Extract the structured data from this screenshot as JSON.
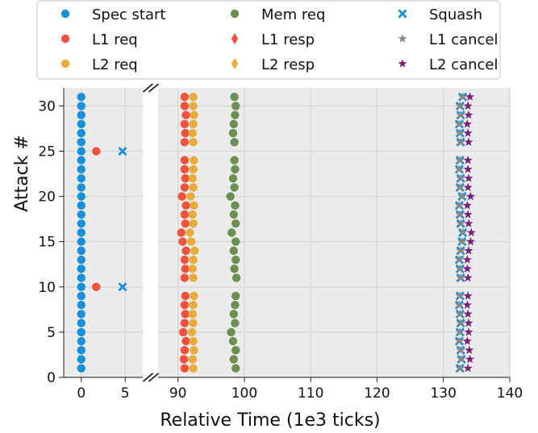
{
  "chart_data": {
    "type": "scatter",
    "xlabel": "Relative Time (1e3 ticks)",
    "ylabel": "Attack #",
    "broken_x_axis": true,
    "x_segments": [
      {
        "xlim": [
          -2,
          7
        ],
        "ticks": [
          0,
          5
        ]
      },
      {
        "xlim": [
          87,
          140
        ],
        "ticks": [
          90,
          100,
          110,
          120,
          130,
          140
        ]
      }
    ],
    "ylim": [
      0,
      32
    ],
    "yticks": [
      0,
      5,
      10,
      15,
      20,
      25,
      30
    ],
    "grid": true,
    "legend_position": "top",
    "legend_columns": 3,
    "series": [
      {
        "name": "Spec start",
        "marker": "circle",
        "color": "#1a90d6",
        "points": [
          [
            0,
            1
          ],
          [
            0,
            2
          ],
          [
            0,
            3
          ],
          [
            0,
            4
          ],
          [
            0,
            5
          ],
          [
            0,
            6
          ],
          [
            0,
            7
          ],
          [
            0,
            8
          ],
          [
            0,
            9
          ],
          [
            0,
            10
          ],
          [
            0,
            11
          ],
          [
            0,
            12
          ],
          [
            0,
            13
          ],
          [
            0,
            14
          ],
          [
            0,
            15
          ],
          [
            0,
            16
          ],
          [
            0,
            17
          ],
          [
            0,
            18
          ],
          [
            0,
            19
          ],
          [
            0,
            20
          ],
          [
            0,
            21
          ],
          [
            0,
            22
          ],
          [
            0,
            23
          ],
          [
            0,
            24
          ],
          [
            0,
            25
          ],
          [
            0,
            26
          ],
          [
            0,
            27
          ],
          [
            0,
            28
          ],
          [
            0,
            29
          ],
          [
            0,
            30
          ],
          [
            0,
            31
          ]
        ]
      },
      {
        "name": "L1 req",
        "marker": "circle",
        "color": "#f0533d",
        "points": [
          [
            1.7,
            10
          ],
          [
            1.7,
            25
          ],
          [
            91.0,
            1
          ],
          [
            90.9,
            2
          ],
          [
            91.0,
            3
          ],
          [
            91.2,
            4
          ],
          [
            90.8,
            5
          ],
          [
            91.0,
            6
          ],
          [
            91.1,
            7
          ],
          [
            91.0,
            8
          ],
          [
            91.1,
            9
          ],
          [
            91.0,
            11
          ],
          [
            91.1,
            12
          ],
          [
            91.0,
            13
          ],
          [
            91.2,
            14
          ],
          [
            90.7,
            15
          ],
          [
            90.5,
            16
          ],
          [
            91.1,
            17
          ],
          [
            91.0,
            18
          ],
          [
            91.2,
            19
          ],
          [
            90.6,
            20
          ],
          [
            91.0,
            21
          ],
          [
            91.1,
            22
          ],
          [
            91.0,
            23
          ],
          [
            91.0,
            24
          ],
          [
            91.0,
            26
          ],
          [
            91.1,
            27
          ],
          [
            91.0,
            28
          ],
          [
            91.2,
            29
          ],
          [
            91.0,
            30
          ],
          [
            91.0,
            31
          ]
        ]
      },
      {
        "name": "L2 req",
        "marker": "circle",
        "color": "#e6ac3c",
        "points": [
          [
            92.3,
            1
          ],
          [
            92.2,
            2
          ],
          [
            92.4,
            3
          ],
          [
            92.3,
            4
          ],
          [
            92.1,
            5
          ],
          [
            92.3,
            6
          ],
          [
            92.2,
            7
          ],
          [
            92.3,
            8
          ],
          [
            92.4,
            9
          ],
          [
            92.3,
            11
          ],
          [
            92.2,
            12
          ],
          [
            92.3,
            13
          ],
          [
            92.5,
            14
          ],
          [
            92.0,
            15
          ],
          [
            91.8,
            16
          ],
          [
            92.3,
            17
          ],
          [
            92.2,
            18
          ],
          [
            92.4,
            19
          ],
          [
            91.9,
            20
          ],
          [
            92.3,
            21
          ],
          [
            92.2,
            22
          ],
          [
            92.3,
            23
          ],
          [
            92.4,
            24
          ],
          [
            92.3,
            26
          ],
          [
            92.2,
            27
          ],
          [
            92.3,
            28
          ],
          [
            92.4,
            29
          ],
          [
            92.3,
            30
          ],
          [
            92.3,
            31
          ]
        ]
      },
      {
        "name": "Mem req",
        "marker": "circle",
        "color": "#6b9052",
        "points": [
          [
            98.7,
            1
          ],
          [
            98.4,
            2
          ],
          [
            98.7,
            3
          ],
          [
            98.3,
            4
          ],
          [
            98.0,
            5
          ],
          [
            98.6,
            6
          ],
          [
            98.4,
            7
          ],
          [
            98.6,
            8
          ],
          [
            98.7,
            9
          ],
          [
            98.8,
            11
          ],
          [
            98.5,
            12
          ],
          [
            98.7,
            13
          ],
          [
            98.4,
            14
          ],
          [
            98.7,
            15
          ],
          [
            98.1,
            16
          ],
          [
            98.7,
            17
          ],
          [
            98.4,
            18
          ],
          [
            98.6,
            19
          ],
          [
            97.9,
            20
          ],
          [
            98.5,
            21
          ],
          [
            98.3,
            22
          ],
          [
            98.6,
            23
          ],
          [
            98.5,
            24
          ],
          [
            98.5,
            26
          ],
          [
            98.3,
            27
          ],
          [
            98.4,
            28
          ],
          [
            98.6,
            29
          ],
          [
            98.7,
            30
          ],
          [
            98.5,
            31
          ]
        ]
      },
      {
        "name": "L1 resp",
        "marker": "diamond",
        "color": "#f0533d",
        "points": []
      },
      {
        "name": "L2 resp",
        "marker": "diamond",
        "color": "#e6ac3c",
        "points": []
      },
      {
        "name": "Squash",
        "marker": "x",
        "color": "#1a90d6",
        "points": [
          [
            4.7,
            10
          ],
          [
            4.7,
            25
          ],
          [
            132.5,
            1
          ],
          [
            132.7,
            2
          ],
          [
            132.6,
            3
          ],
          [
            132.4,
            4
          ],
          [
            132.5,
            5
          ],
          [
            132.6,
            6
          ],
          [
            132.5,
            7
          ],
          [
            132.4,
            8
          ],
          [
            132.5,
            9
          ],
          [
            132.6,
            11
          ],
          [
            132.5,
            12
          ],
          [
            132.4,
            13
          ],
          [
            132.6,
            14
          ],
          [
            132.8,
            15
          ],
          [
            132.9,
            16
          ],
          [
            132.6,
            17
          ],
          [
            132.5,
            18
          ],
          [
            132.4,
            19
          ],
          [
            132.8,
            20
          ],
          [
            132.5,
            21
          ],
          [
            132.6,
            22
          ],
          [
            132.4,
            23
          ],
          [
            132.5,
            24
          ],
          [
            132.6,
            26
          ],
          [
            132.5,
            27
          ],
          [
            132.4,
            28
          ],
          [
            132.6,
            29
          ],
          [
            132.5,
            30
          ],
          [
            132.9,
            31
          ]
        ]
      },
      {
        "name": "L1 cancel",
        "marker": "star",
        "color": "#888888",
        "points": [
          [
            132.5,
            1
          ],
          [
            132.7,
            2
          ],
          [
            132.6,
            3
          ],
          [
            132.4,
            4
          ],
          [
            132.5,
            5
          ],
          [
            132.6,
            6
          ],
          [
            132.5,
            7
          ],
          [
            132.4,
            8
          ],
          [
            132.5,
            9
          ],
          [
            132.6,
            11
          ],
          [
            132.5,
            12
          ],
          [
            132.4,
            13
          ],
          [
            132.6,
            14
          ],
          [
            132.8,
            15
          ],
          [
            132.9,
            16
          ],
          [
            132.6,
            17
          ],
          [
            132.5,
            18
          ],
          [
            132.4,
            19
          ],
          [
            132.8,
            20
          ],
          [
            132.5,
            21
          ],
          [
            132.6,
            22
          ],
          [
            132.4,
            23
          ],
          [
            132.5,
            24
          ],
          [
            132.6,
            26
          ],
          [
            132.5,
            27
          ],
          [
            132.4,
            28
          ],
          [
            132.6,
            29
          ],
          [
            132.5,
            30
          ],
          [
            132.9,
            31
          ]
        ]
      },
      {
        "name": "L2 cancel",
        "marker": "star",
        "color": "#7b1f7e",
        "points": [
          [
            133.7,
            1
          ],
          [
            134.0,
            2
          ],
          [
            133.9,
            3
          ],
          [
            133.6,
            4
          ],
          [
            133.8,
            5
          ],
          [
            133.8,
            6
          ],
          [
            133.7,
            7
          ],
          [
            133.6,
            8
          ],
          [
            133.7,
            9
          ],
          [
            133.7,
            11
          ],
          [
            133.6,
            12
          ],
          [
            133.6,
            13
          ],
          [
            133.8,
            14
          ],
          [
            134.1,
            15
          ],
          [
            134.2,
            16
          ],
          [
            133.8,
            17
          ],
          [
            133.7,
            18
          ],
          [
            133.6,
            19
          ],
          [
            134.1,
            20
          ],
          [
            133.7,
            21
          ],
          [
            133.8,
            22
          ],
          [
            133.7,
            23
          ],
          [
            133.7,
            24
          ],
          [
            133.8,
            26
          ],
          [
            133.7,
            27
          ],
          [
            133.6,
            28
          ],
          [
            133.8,
            29
          ],
          [
            133.7,
            30
          ],
          [
            134.0,
            31
          ]
        ]
      }
    ],
    "colors": {
      "axes_background": "#ebebeb",
      "grid": "#d8d8d8",
      "axis_line": "#222222"
    }
  }
}
